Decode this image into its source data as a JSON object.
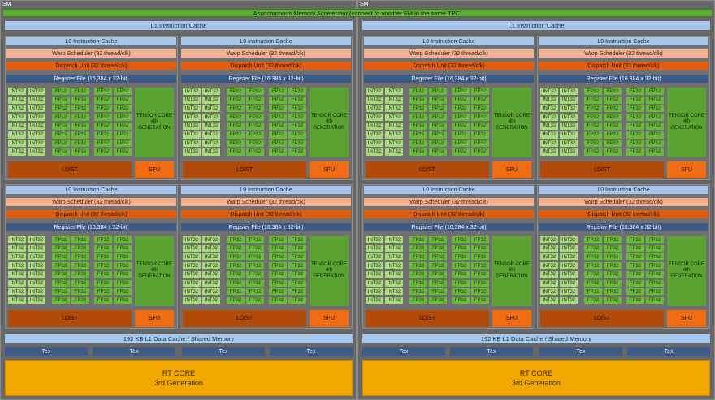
{
  "sm_label": "SM",
  "async_bar": "Asynchronous Memory Accelerator (connect to another SM in the same TPC)",
  "l1_instruction_cache": "L1 Instruction Cache",
  "l0_instruction_cache": "L0 Instruction Cache",
  "warp_scheduler": "Warp Scheduler (32 thread/clk)",
  "dispatch_unit": "Dispatch Unit (32 thread/clk)",
  "register_file": "Register File (16,384 x 32-bit)",
  "int32": "INT32",
  "fp32": "FP32",
  "tensor_core": "TENSOR CORE 4th GENERATION",
  "ldst": "LD/ST",
  "sfu": "SFU",
  "l1_data_cache": "192 KB L1 Data Cache / Shared Memory",
  "tex": "Tex",
  "rt_core": {
    "line1": "RT CORE",
    "line2": "3rd Generation"
  },
  "colors": {
    "async": "#5fae35",
    "cache": "#a6c6ec",
    "warp": "#f4b08e",
    "dispatch": "#e05d10",
    "register": "#3e5a86",
    "int32": "#a9d67f",
    "fp32": "#6ab83b",
    "tensor": "#5aa332",
    "ldst": "#b24a09",
    "sfu": "#ef6c14",
    "rt": "#f2a800"
  }
}
